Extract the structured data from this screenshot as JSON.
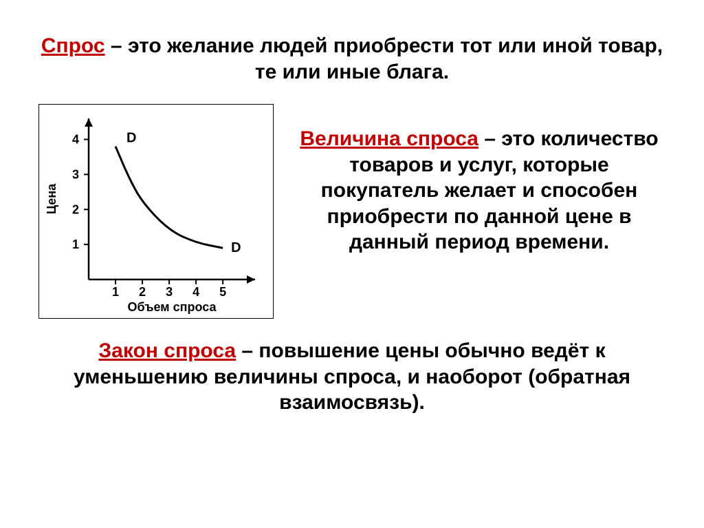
{
  "demand_def": {
    "term": "Спрос",
    "text": " – это желание людей приобрести тот или иной товар, те или иные блага."
  },
  "qty_def": {
    "term": "Величина спроса",
    "text": " – это количество товаров и услуг, которые покупатель желает и способен приобрести по данной цене в данный период времени."
  },
  "law_def": {
    "term": "Закон спроса",
    "text": " – повышение цены обычно ведёт к уменьшению величины спроса, и наоборот (обратная взаимосвязь)."
  },
  "chart": {
    "type": "line",
    "y_label": "Цена",
    "x_label": "Объем спроса",
    "x_ticks": [
      "1",
      "2",
      "3",
      "4",
      "5"
    ],
    "y_ticks": [
      "1",
      "2",
      "3",
      "4"
    ],
    "series_label_start": "D",
    "series_label_end": "D",
    "curve_points": [
      {
        "x": 1.0,
        "y": 3.8
      },
      {
        "x": 1.5,
        "y": 2.9
      },
      {
        "x": 2.0,
        "y": 2.2
      },
      {
        "x": 3.0,
        "y": 1.4
      },
      {
        "x": 4.0,
        "y": 1.05
      },
      {
        "x": 5.0,
        "y": 0.9
      }
    ],
    "xlim": [
      0,
      6.2
    ],
    "ylim": [
      0,
      4.6
    ],
    "axis_color": "#000000",
    "curve_color": "#000000",
    "curve_width": 3,
    "tick_fontsize": 18,
    "label_fontsize": 18,
    "annot_fontsize": 20,
    "background_color": "#ffffff"
  }
}
